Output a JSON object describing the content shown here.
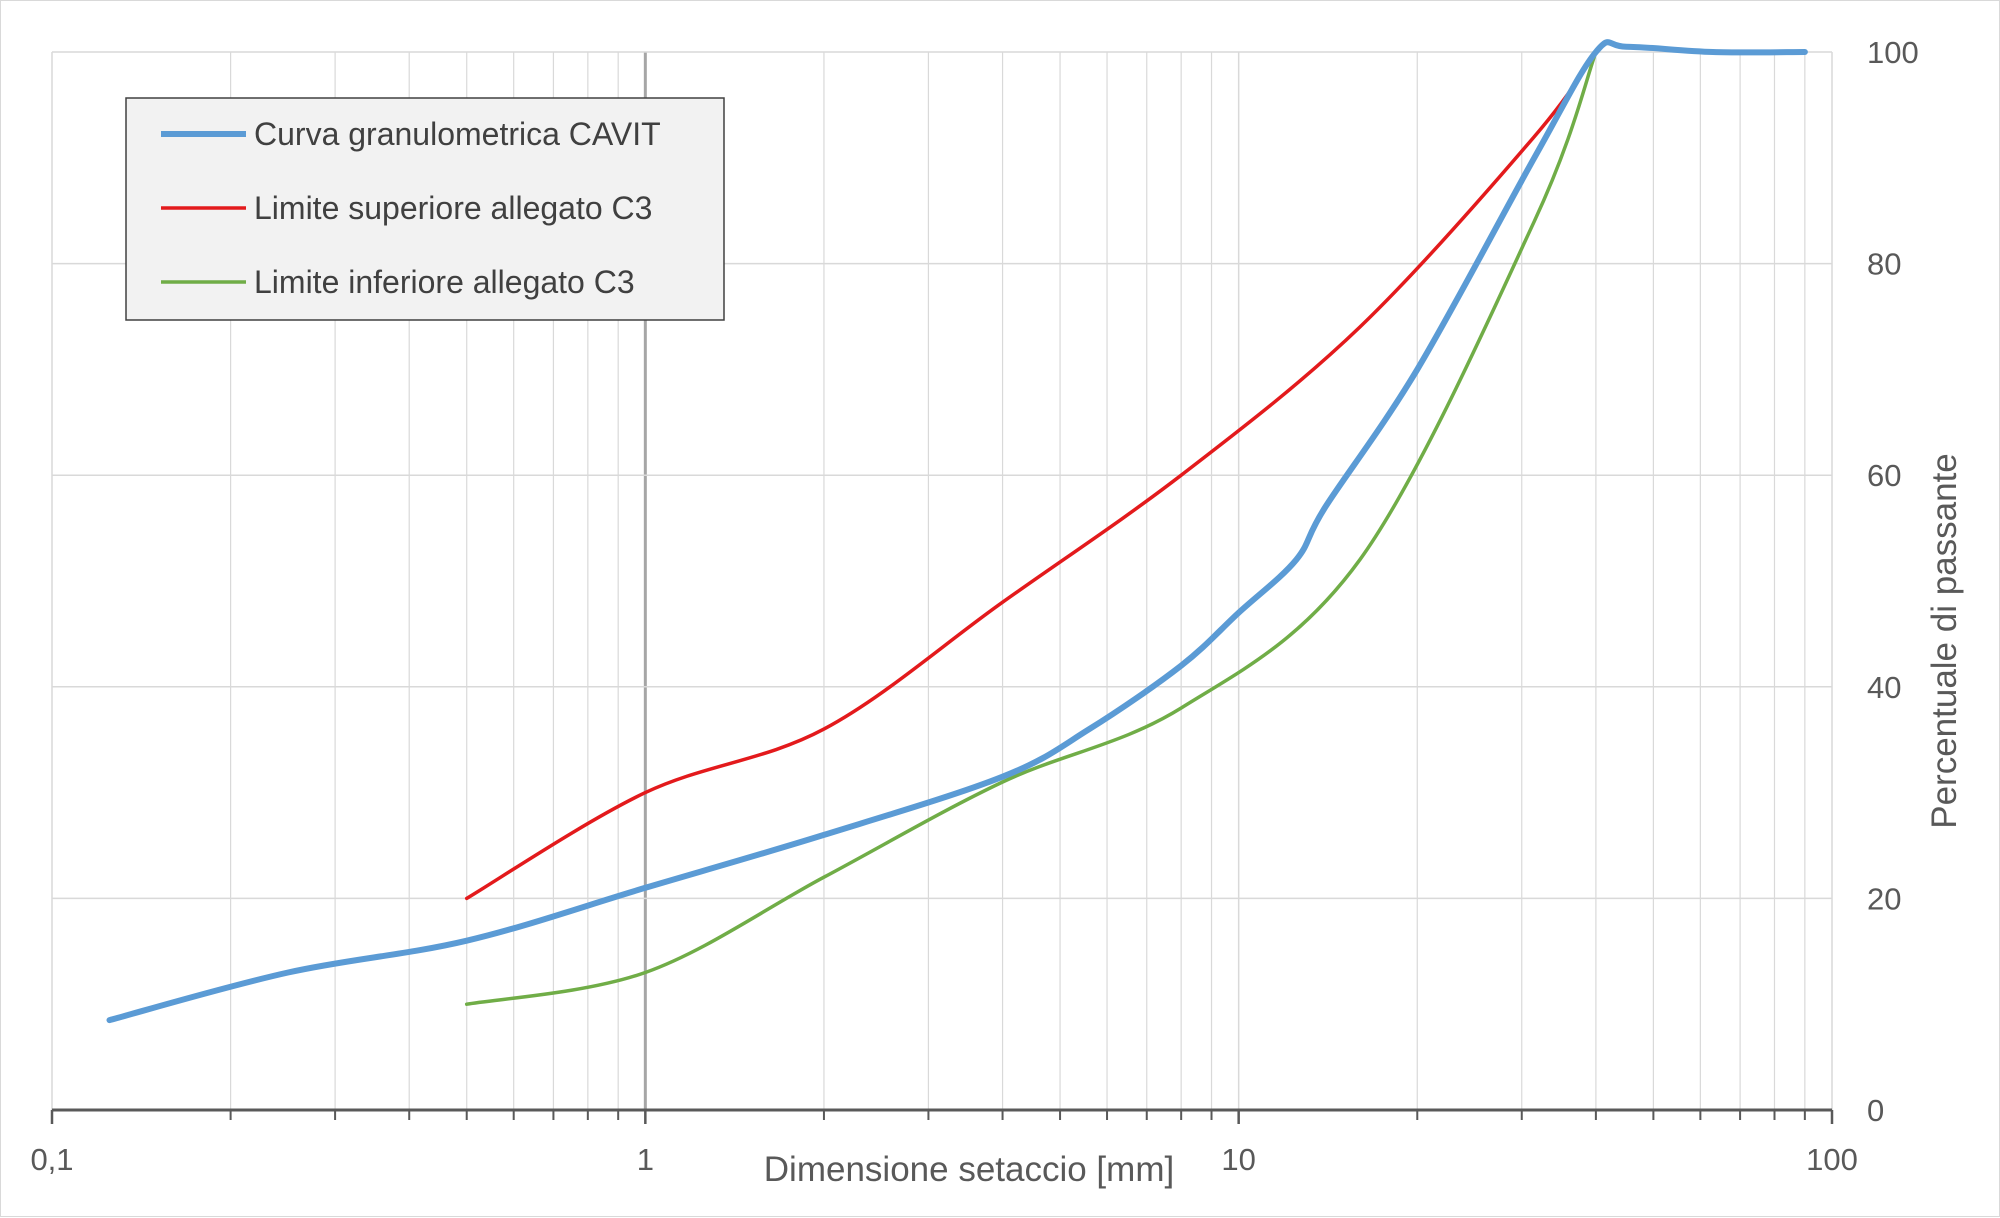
{
  "chart_data": {
    "type": "line",
    "xlabel": "Dimensione setaccio [mm]",
    "ylabel": "Percentuale di passante",
    "x_scale": "log",
    "xlim": [
      0.1,
      100
    ],
    "ylim": [
      0,
      100
    ],
    "x_ticks": [
      {
        "value": 0.1,
        "label": "0,1"
      },
      {
        "value": 1,
        "label": "1"
      },
      {
        "value": 10,
        "label": "10"
      },
      {
        "value": 100,
        "label": "100"
      }
    ],
    "y_ticks": [
      {
        "value": 0,
        "label": "0"
      },
      {
        "value": 20,
        "label": "20"
      },
      {
        "value": 40,
        "label": "40"
      },
      {
        "value": 60,
        "label": "60"
      },
      {
        "value": 80,
        "label": "80"
      },
      {
        "value": 100,
        "label": "100"
      }
    ],
    "grid": true,
    "legend_position": "top-left",
    "series": [
      {
        "name": "Curva granulometrica CAVIT",
        "color": "#5b9bd5",
        "width": 6,
        "x": [
          0.125,
          0.25,
          0.5,
          1,
          2,
          4,
          5.6,
          8,
          10,
          12.5,
          14,
          20,
          31.5,
          40,
          45,
          63,
          90
        ],
        "y": [
          8.5,
          13,
          16,
          21,
          26,
          31.5,
          36,
          42,
          47,
          52,
          57,
          70,
          90,
          100,
          100.5,
          100,
          100
        ]
      },
      {
        "name": "Limite superiore allegato C3",
        "color": "#e31a1c",
        "width": 3.5,
        "x": [
          0.5,
          1,
          2,
          4,
          8,
          16,
          31.5,
          40
        ],
        "y": [
          20,
          30,
          36,
          48,
          60,
          74,
          92,
          100
        ]
      },
      {
        "name": "Limite inferiore allegato C3",
        "color": "#70ad47",
        "width": 3.5,
        "x": [
          0.5,
          1,
          2,
          4,
          8,
          16,
          31.5,
          40
        ],
        "y": [
          10,
          13,
          22,
          31,
          38,
          52,
          84,
          100
        ]
      }
    ]
  }
}
